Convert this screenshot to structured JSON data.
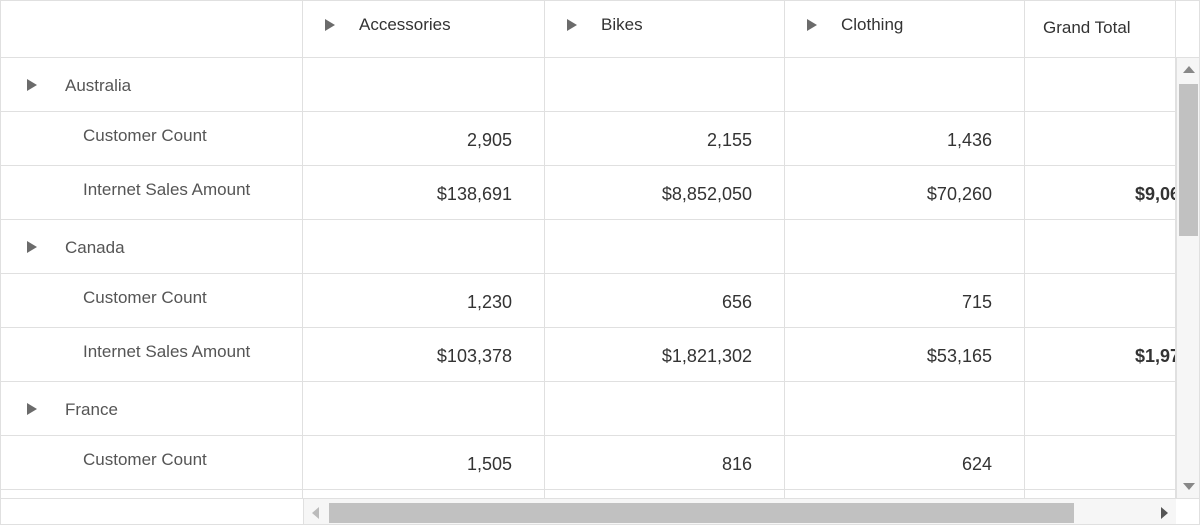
{
  "columns": [
    {
      "label": "Accessories",
      "expandable": true
    },
    {
      "label": "Bikes",
      "expandable": true
    },
    {
      "label": "Clothing",
      "expandable": true
    },
    {
      "label": "Grand Total",
      "expandable": false
    }
  ],
  "rows": [
    {
      "type": "group",
      "label": "Australia",
      "values": [
        "",
        "",
        "",
        ""
      ]
    },
    {
      "type": "measure",
      "label": "Customer Count",
      "values": [
        "2,905",
        "2,155",
        "1,436",
        ""
      ]
    },
    {
      "type": "measure",
      "label": "Internet Sales Amount",
      "values": [
        "$138,691",
        "$8,852,050",
        "$70,260",
        "$9,06"
      ]
    },
    {
      "type": "group",
      "label": "Canada",
      "values": [
        "",
        "",
        "",
        ""
      ]
    },
    {
      "type": "measure",
      "label": "Customer Count",
      "values": [
        "1,230",
        "656",
        "715",
        ""
      ]
    },
    {
      "type": "measure",
      "label": "Internet Sales Amount",
      "values": [
        "$103,378",
        "$1,821,302",
        "$53,165",
        "$1,97"
      ]
    },
    {
      "type": "group",
      "label": "France",
      "values": [
        "",
        "",
        "",
        ""
      ]
    },
    {
      "type": "measure",
      "label": "Customer Count",
      "values": [
        "1,505",
        "816",
        "624",
        ""
      ]
    },
    {
      "type": "measure",
      "label": "",
      "values": [
        "",
        "",
        "",
        ""
      ]
    }
  ],
  "colors": {
    "border": "#e0e0e0",
    "icon": "#6b6b6b",
    "scroll_thumb": "#c1c1c1"
  }
}
